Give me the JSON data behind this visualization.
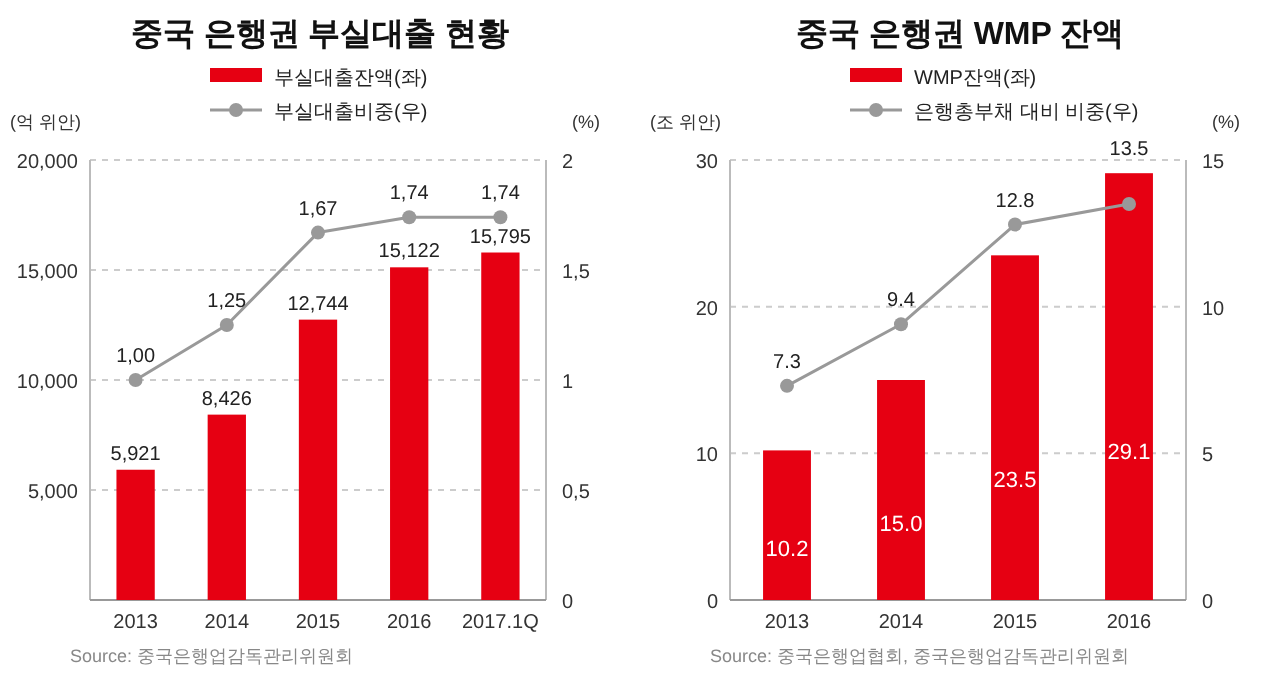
{
  "chart_data": [
    {
      "type": "bar",
      "title": "중국 은행권 부실대출 현황",
      "ylabel": "(억 위안)",
      "y2label": "(%)",
      "categories": [
        "2013",
        "2014",
        "2015",
        "2016",
        "2017.1Q"
      ],
      "series": [
        {
          "name": "부실대출잔액(좌)",
          "color": "#e60012",
          "values": [
            5921,
            8426,
            12744,
            15122,
            15795
          ],
          "value_labels": [
            "5,921",
            "8,426",
            "12,744",
            "15,122",
            "15,795"
          ]
        },
        {
          "name": "부실대출비중(우)",
          "type": "line",
          "axis": "y2",
          "color": "#999999",
          "values": [
            1.0,
            1.25,
            1.67,
            1.74,
            1.74
          ],
          "value_labels": [
            "1,00",
            "1,25",
            "1,67",
            "1,74",
            "1,74"
          ]
        }
      ],
      "ylim": [
        0,
        20000
      ],
      "yticks": [
        {
          "value": 0,
          "label": null
        },
        {
          "value": 5000,
          "label": "5,000"
        },
        {
          "value": 10000,
          "label": "10,000"
        },
        {
          "value": 15000,
          "label": "15,000"
        },
        {
          "value": 20000,
          "label": "20,000"
        }
      ],
      "y2lim": [
        0,
        2
      ],
      "y2ticks": [
        0,
        {
          "value": 0.5,
          "label": "0,5"
        },
        1,
        {
          "value": 1.5,
          "label": "1,5"
        },
        2
      ],
      "grid": "y",
      "legend": "top",
      "marker": "circle",
      "annotations": [
        "Source: 중국은행업감독관리위원회"
      ]
    },
    {
      "type": "bar",
      "title": "중국 은행권 WMP 잔액",
      "ylabel": "(조 위안)",
      "y2label": "(%)",
      "categories": [
        "2013",
        "2014",
        "2015",
        "2016"
      ],
      "series": [
        {
          "name": "WMP잔액(좌)",
          "color": "#e60012",
          "values": [
            10.2,
            15.0,
            23.5,
            29.1
          ],
          "value_labels": [
            "10.2",
            "15.0",
            "23.5",
            "29.1"
          ]
        },
        {
          "name": "은행총부채 대비 비중(우)",
          "type": "line",
          "axis": "y2",
          "color": "#999999",
          "values": [
            7.3,
            9.4,
            12.8,
            13.5
          ],
          "value_labels": [
            "7.3",
            "9.4",
            "12.8",
            "13.5"
          ]
        }
      ],
      "ylim": [
        0,
        30
      ],
      "yticks": [
        0,
        10,
        20,
        30
      ],
      "y2lim": [
        0,
        15
      ],
      "y2ticks": [
        0,
        5,
        10,
        15
      ],
      "grid": "y",
      "legend": "top",
      "marker": "circle",
      "annotations": [
        "Source: 중국은행업협회, 중국은행업감독관리위원회"
      ]
    }
  ]
}
